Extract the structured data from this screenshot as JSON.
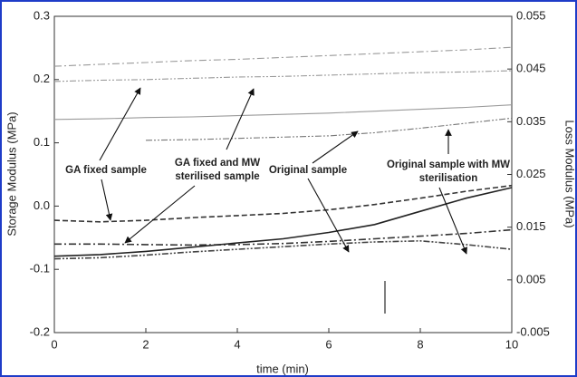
{
  "chart_data": {
    "type": "line",
    "y_label": "Storage Modulus (MPa)",
    "y2_label": "Loss Modulus (MPa)",
    "x_label": "time (min)",
    "x": [
      0,
      1,
      2,
      3,
      4,
      5,
      6,
      7,
      8,
      9,
      10
    ],
    "xlim": [
      0,
      10
    ],
    "xticks": [
      0,
      2,
      4,
      6,
      8,
      10
    ],
    "ylim": [
      -0.2,
      0.3
    ],
    "yticks": [
      -0.2,
      -0.1,
      {
        "value": 0,
        "label": "0.0"
      },
      0.1,
      0.2,
      0.3
    ],
    "y2lim": [
      -0.005,
      0.055
    ],
    "y2ticks": [
      -0.005,
      0.005,
      0.015,
      0.025,
      0.035,
      0.045,
      0.055
    ],
    "series": [
      {
        "color": "#9a9a9a",
        "dash": "8 3 2 3",
        "values": [
          0.221,
          0.224,
          0.227,
          0.23,
          0.232,
          0.235,
          0.238,
          0.241,
          0.244,
          0.247,
          0.251
        ]
      },
      {
        "color": "#9a9a9a",
        "dash": "7 2 2 2 2 2",
        "values": [
          0.197,
          0.199,
          0.2,
          0.202,
          0.204,
          0.205,
          0.207,
          0.209,
          0.211,
          0.212,
          0.214
        ]
      },
      {
        "color": "#9a9a9a",
        "dash": "",
        "values": [
          0.137,
          0.138,
          0.14,
          0.141,
          0.143,
          0.145,
          0.147,
          0.15,
          0.153,
          0.156,
          0.16
        ]
      },
      {
        "color": "#777777",
        "dash": "7 2 2 2 2 2",
        "values": [
          null,
          null,
          0.104,
          0.105,
          0.107,
          0.109,
          0.111,
          0.116,
          0.123,
          0.131,
          0.139
        ]
      },
      {
        "color": "#333333",
        "dash": "6 3",
        "axis": "y2",
        "values": [
          0.0163,
          0.016,
          0.0163,
          0.0168,
          0.0172,
          0.0176,
          0.0183,
          0.0193,
          0.0205,
          0.0218,
          0.0229
        ]
      },
      {
        "color": "#333333",
        "dash": "8 3 2 3",
        "axis": "y2",
        "values": [
          0.0118,
          0.0118,
          0.0117,
          0.0116,
          0.0117,
          0.0119,
          0.0123,
          0.0128,
          0.0133,
          0.0138,
          0.0145
        ]
      },
      {
        "color": "#222222",
        "dash": "",
        "axis": "y2",
        "values": [
          0.0095,
          0.0098,
          0.0104,
          0.0112,
          0.012,
          0.0128,
          0.014,
          0.0155,
          0.018,
          0.0205,
          0.0225
        ]
      },
      {
        "color": "#444444",
        "dash": "7 2 2 2 2 2",
        "axis": "y2",
        "values": [
          0.009,
          0.0092,
          0.0097,
          0.0103,
          0.0108,
          0.0113,
          0.0118,
          0.0122,
          0.0124,
          0.0117,
          0.0108
        ]
      }
    ],
    "annotations": [
      [
        "GA fixed sample"
      ],
      [
        "GA fixed and MW",
        "sterilised sample"
      ],
      [
        "Original sample"
      ],
      [
        "Original sample with MW",
        "sterilisation"
      ]
    ]
  }
}
